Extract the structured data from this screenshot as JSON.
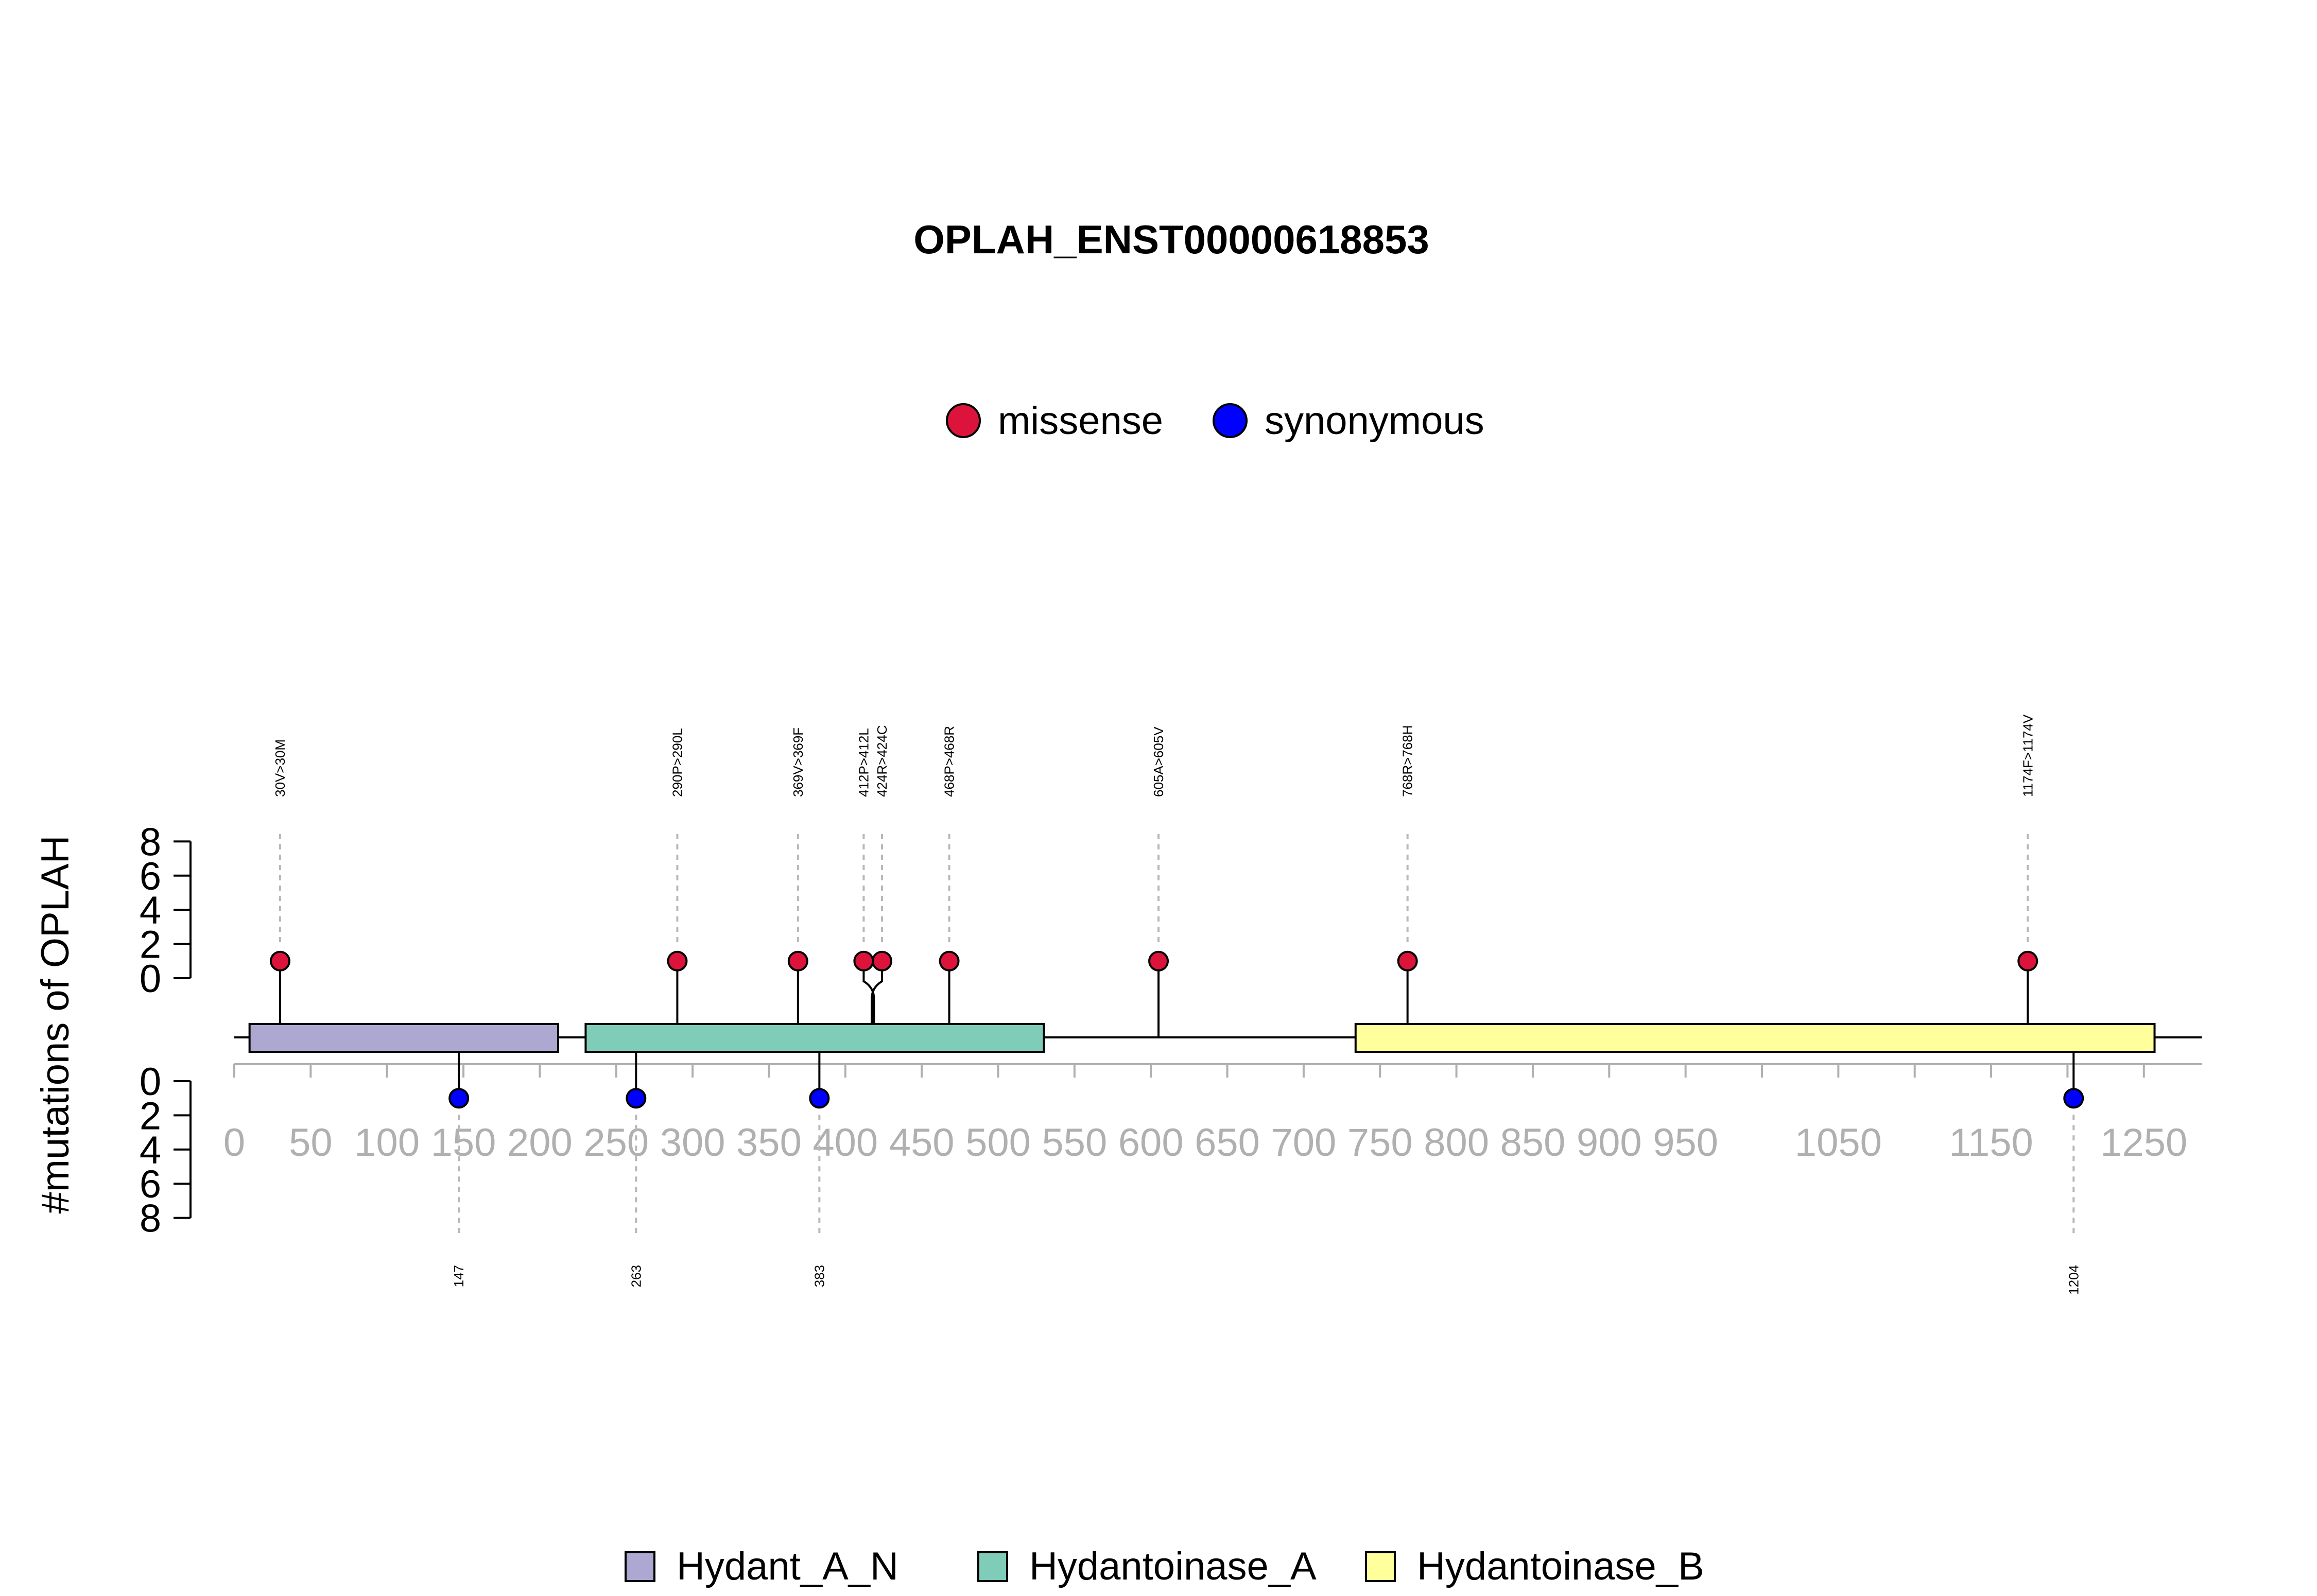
{
  "chart_data": {
    "type": "lollipop",
    "title": "OPLAH_ENST00000618853",
    "ylabel": "#mutations of OPLAH",
    "protein_length": 1288,
    "x_ticks": [
      0,
      50,
      100,
      150,
      200,
      250,
      300,
      350,
      400,
      450,
      500,
      550,
      600,
      650,
      700,
      750,
      800,
      850,
      900,
      950,
      1050,
      1150,
      1250
    ],
    "y_ticks_upper": [
      0,
      2,
      4,
      6,
      8
    ],
    "y_ticks_lower": [
      0,
      2,
      4,
      6,
      8
    ],
    "mutation_types": [
      {
        "name": "missense",
        "color": "#dc143c"
      },
      {
        "name": "synonymous",
        "color": "#0000ff"
      }
    ],
    "domains": [
      {
        "name": "Hydant_A_N",
        "start": 10,
        "end": 212,
        "color": "#aca8d1"
      },
      {
        "name": "Hydantoinase_A",
        "start": 230,
        "end": 530,
        "color": "#7fccb9"
      },
      {
        "name": "Hydantoinase_B",
        "start": 734,
        "end": 1257,
        "color": "#ffff9c"
      }
    ],
    "upper_mutations": [
      {
        "label": "30V>30M",
        "position": 30,
        "count": 1,
        "type": "missense"
      },
      {
        "label": "290P>290L",
        "position": 290,
        "count": 1,
        "type": "missense"
      },
      {
        "label": "369V>369F",
        "position": 369,
        "count": 1,
        "type": "missense"
      },
      {
        "label": "412P>412L",
        "position": 412,
        "count": 1,
        "type": "missense"
      },
      {
        "label": "424R>424C",
        "position": 424,
        "count": 1,
        "type": "missense"
      },
      {
        "label": "468P>468R",
        "position": 468,
        "count": 1,
        "type": "missense"
      },
      {
        "label": "605A>605V",
        "position": 605,
        "count": 1,
        "type": "missense"
      },
      {
        "label": "768R>768H",
        "position": 768,
        "count": 1,
        "type": "missense"
      },
      {
        "label": "1174F>1174V",
        "position": 1174,
        "count": 1,
        "type": "missense"
      }
    ],
    "lower_mutations": [
      {
        "label": "147",
        "position": 147,
        "count": 1,
        "type": "synonymous"
      },
      {
        "label": "263",
        "position": 263,
        "count": 1,
        "type": "synonymous"
      },
      {
        "label": "383",
        "position": 383,
        "count": 1,
        "type": "synonymous"
      },
      {
        "label": "1204",
        "position": 1204,
        "count": 1,
        "type": "synonymous"
      }
    ]
  }
}
